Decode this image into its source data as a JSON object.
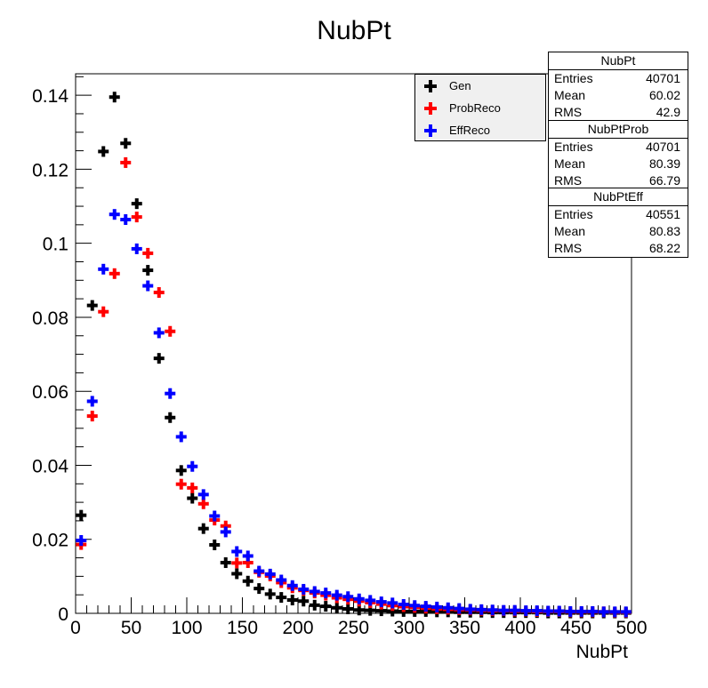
{
  "chart_data": {
    "type": "scatter",
    "title": "NubPt",
    "xlabel": "NubPt",
    "ylabel": "",
    "xlim": [
      0,
      500
    ],
    "ylim": [
      0,
      0.1458
    ],
    "xticks": [
      "0",
      "50",
      "100",
      "150",
      "200",
      "250",
      "300",
      "350",
      "400",
      "450",
      "500"
    ],
    "yticks": [
      "0",
      "0.02",
      "0.04",
      "0.06",
      "0.08",
      "0.1",
      "0.12",
      "0.14"
    ],
    "grid": false,
    "legend_position": "top-right",
    "x": [
      5,
      15,
      25,
      35,
      45,
      55,
      65,
      75,
      85,
      95,
      105,
      115,
      125,
      135,
      145,
      155,
      165,
      175,
      185,
      195,
      205,
      215,
      225,
      235,
      245,
      255,
      265,
      275,
      285,
      295,
      305,
      315,
      325,
      335,
      345,
      355,
      365,
      375,
      385,
      395,
      405,
      415,
      425,
      435,
      445,
      455,
      465,
      475,
      485,
      495
    ],
    "series": [
      {
        "name": "Gen",
        "color": "#000000",
        "values": [
          0.0265,
          0.0832,
          0.1248,
          0.1395,
          0.127,
          0.1107,
          0.0927,
          0.0689,
          0.0529,
          0.0386,
          0.0311,
          0.0229,
          0.0185,
          0.0137,
          0.0107,
          0.0087,
          0.0067,
          0.0052,
          0.0043,
          0.0036,
          0.0033,
          0.0022,
          0.0019,
          0.0015,
          0.0012,
          0.0009,
          0.0008,
          0.0007,
          0.0006,
          0.0005,
          0.0005,
          0.0005,
          0.0004,
          0.0004,
          0.0003,
          0.0003,
          0.0003,
          0.0002,
          0.0002,
          0.0002,
          0.0002,
          0.0002,
          0.0001,
          0.0001,
          0.0001,
          0.0001,
          0.0001,
          0.0001,
          0.0001,
          0.0001
        ]
      },
      {
        "name": "ProbReco",
        "color": "#ff0000",
        "values": [
          0.0186,
          0.0533,
          0.0815,
          0.0918,
          0.1218,
          0.1071,
          0.0973,
          0.0867,
          0.0762,
          0.0349,
          0.0339,
          0.0296,
          0.0252,
          0.0236,
          0.0136,
          0.0137,
          0.0111,
          0.0101,
          0.0083,
          0.0069,
          0.0062,
          0.0055,
          0.0049,
          0.0042,
          0.0038,
          0.0033,
          0.0029,
          0.0025,
          0.0021,
          0.0018,
          0.0016,
          0.0014,
          0.0012,
          0.0011,
          0.001,
          0.0009,
          0.0008,
          0.0007,
          0.0007,
          0.0006,
          0.0006,
          0.0005,
          0.0005,
          0.0005,
          0.0004,
          0.0004,
          0.0004,
          0.0004,
          0.0003,
          0.0003
        ]
      },
      {
        "name": "EffReco",
        "color": "#0000ff",
        "values": [
          0.0197,
          0.0573,
          0.093,
          0.1078,
          0.1064,
          0.0985,
          0.0885,
          0.0758,
          0.0594,
          0.0477,
          0.0397,
          0.0321,
          0.0263,
          0.022,
          0.0167,
          0.0155,
          0.0114,
          0.0106,
          0.009,
          0.0075,
          0.0065,
          0.0059,
          0.0055,
          0.0049,
          0.0045,
          0.0039,
          0.0035,
          0.0031,
          0.0028,
          0.0024,
          0.0021,
          0.0019,
          0.0017,
          0.0015,
          0.0013,
          0.0011,
          0.001,
          0.0009,
          0.0008,
          0.0008,
          0.0007,
          0.0007,
          0.0006,
          0.0006,
          0.0005,
          0.0005,
          0.0005,
          0.0004,
          0.0004,
          0.0004
        ]
      }
    ]
  },
  "stats": [
    {
      "title": "NubPt",
      "rows": [
        [
          "Entries",
          "40701"
        ],
        [
          "Mean",
          "60.02"
        ],
        [
          "RMS",
          "42.9"
        ]
      ]
    },
    {
      "title": "NubPtProb",
      "rows": [
        [
          "Entries",
          "40701"
        ],
        [
          "Mean",
          "80.39"
        ],
        [
          "RMS",
          "66.79"
        ]
      ]
    },
    {
      "title": "NubPtEff",
      "rows": [
        [
          "Entries",
          "40551"
        ],
        [
          "Mean",
          "80.83"
        ],
        [
          "RMS",
          "68.22"
        ]
      ]
    }
  ]
}
